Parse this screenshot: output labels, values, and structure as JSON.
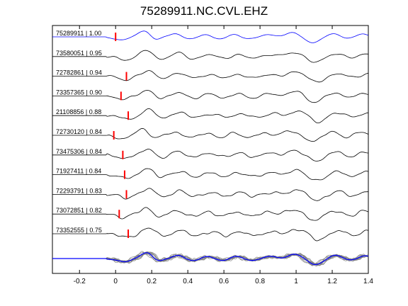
{
  "figure": {
    "title": "75289911.NC.CVL.EHZ"
  },
  "chart_data": {
    "type": "line",
    "title": "75289911.NC.CVL.EHZ",
    "xlabel": "",
    "ylabel": "",
    "xlim": [
      -0.35,
      1.4
    ],
    "xticks": [
      -0.2,
      0,
      0.2,
      0.4,
      0.6,
      0.8,
      1,
      1.2,
      1.4
    ],
    "xtick_labels": [
      "-0.2",
      "0",
      "0.2",
      "0.4",
      "0.6",
      "0.8",
      "1",
      "1.2",
      "1.4"
    ],
    "grid": false,
    "colors": {
      "reference_trace": "#0000ff",
      "trace": "#000000",
      "pick_marker": "#ff0000",
      "stack_trace": "#808080",
      "stack_mean": "#0000ff"
    },
    "series": [
      {
        "label": "75289911 | 1.00",
        "pick": 0.0,
        "reference": true
      },
      {
        "label": "73580051 | 0.95",
        "pick": null
      },
      {
        "label": "72782861 | 0.94",
        "pick": 0.06
      },
      {
        "label": "73357365 | 0.90",
        "pick": 0.03
      },
      {
        "label": "21108856 | 0.88",
        "pick": 0.07
      },
      {
        "label": "72730120 | 0.84",
        "pick": -0.01
      },
      {
        "label": "73475306 | 0.84",
        "pick": 0.04
      },
      {
        "label": "71927411 | 0.84",
        "pick": 0.05
      },
      {
        "label": "72293791 | 0.83",
        "pick": 0.06
      },
      {
        "label": "73072851 | 0.82",
        "pick": 0.02
      },
      {
        "label": "73352555 | 0.75",
        "pick": 0.07
      }
    ]
  }
}
